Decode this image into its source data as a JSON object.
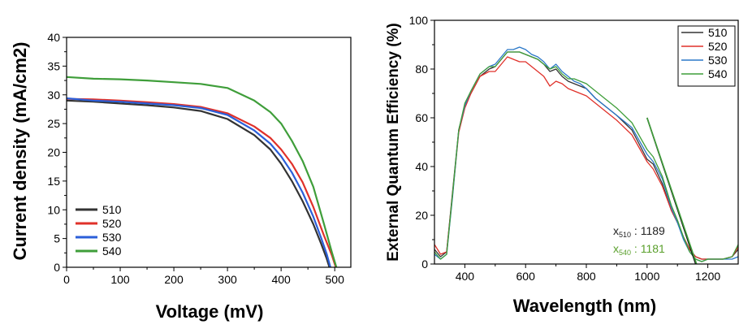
{
  "chart_data": [
    {
      "type": "line",
      "xlabel": "Voltage (mV)",
      "ylabel": "Current density (mA/cm2)",
      "xlim": [
        0,
        530
      ],
      "ylim": [
        0,
        40
      ],
      "xticks": [
        0,
        100,
        200,
        300,
        400,
        500
      ],
      "yticks": [
        0,
        5,
        10,
        15,
        20,
        25,
        30,
        35,
        40
      ],
      "legend_position": "bottom-left",
      "series": [
        {
          "name": "510",
          "color": "#333333",
          "x": [
            0,
            50,
            100,
            150,
            200,
            250,
            300,
            350,
            380,
            400,
            420,
            440,
            460,
            475,
            485,
            490
          ],
          "y": [
            29.0,
            28.8,
            28.5,
            28.2,
            27.8,
            27.2,
            25.8,
            23.0,
            20.5,
            18.0,
            15.0,
            11.5,
            7.5,
            4.0,
            1.5,
            0
          ]
        },
        {
          "name": "520",
          "color": "#e0312a",
          "x": [
            0,
            50,
            100,
            150,
            200,
            250,
            300,
            350,
            380,
            400,
            420,
            440,
            460,
            480,
            495,
            502
          ],
          "y": [
            29.3,
            29.2,
            29.0,
            28.7,
            28.4,
            27.9,
            26.8,
            24.5,
            22.5,
            20.5,
            18.0,
            14.8,
            10.5,
            5.5,
            2.0,
            0
          ]
        },
        {
          "name": "530",
          "color": "#2b5fd9",
          "x": [
            0,
            50,
            100,
            150,
            200,
            250,
            300,
            350,
            380,
            400,
            420,
            440,
            460,
            475,
            485,
            492
          ],
          "y": [
            29.4,
            29.0,
            28.8,
            28.5,
            28.2,
            27.7,
            26.5,
            23.8,
            21.5,
            19.3,
            16.5,
            13.0,
            8.8,
            5.0,
            2.3,
            0
          ]
        },
        {
          "name": "540",
          "color": "#3f9e3a",
          "x": [
            0,
            50,
            100,
            150,
            200,
            250,
            300,
            350,
            380,
            400,
            420,
            440,
            460,
            480,
            495,
            503
          ],
          "y": [
            33.1,
            32.8,
            32.7,
            32.5,
            32.2,
            31.9,
            31.2,
            29.0,
            27.0,
            25.0,
            22.0,
            18.5,
            14.0,
            7.5,
            2.5,
            0
          ]
        }
      ]
    },
    {
      "type": "line",
      "xlabel": "Wavelength (nm)",
      "ylabel": "External Quantum Efficiency (%)",
      "xlim": [
        300,
        1300
      ],
      "ylim": [
        0,
        100
      ],
      "xticks": [
        400,
        600,
        800,
        1000,
        1200
      ],
      "yticks": [
        0,
        20,
        40,
        60,
        80,
        100
      ],
      "legend_position": "top-right",
      "annotations": [
        {
          "label": "x",
          "sub": "510",
          "value": "1189",
          "color": "#222222"
        },
        {
          "label": "x",
          "sub": "540",
          "value": "1181",
          "color": "#5aa02c"
        }
      ],
      "extrapolation_lines": [
        {
          "color": "#111111",
          "x": [
            1000,
            1160
          ],
          "y": [
            60,
            0
          ]
        },
        {
          "color": "#3f9e3a",
          "x": [
            1000,
            1163
          ],
          "y": [
            60,
            0
          ]
        }
      ],
      "series": [
        {
          "name": "510",
          "color": "#333333",
          "x": [
            300,
            320,
            340,
            360,
            380,
            400,
            420,
            450,
            480,
            500,
            520,
            540,
            560,
            580,
            600,
            620,
            640,
            660,
            680,
            700,
            720,
            740,
            760,
            780,
            800,
            830,
            860,
            900,
            950,
            1000,
            1020,
            1050,
            1080,
            1100,
            1120,
            1140,
            1160,
            1180,
            1200,
            1220,
            1250,
            1280,
            1300
          ],
          "y": [
            6,
            3,
            5,
            30,
            55,
            65,
            70,
            77,
            80,
            81,
            84,
            87,
            87,
            87,
            86,
            85,
            84,
            82,
            79,
            80,
            77,
            75,
            74,
            73,
            72,
            68,
            65,
            61,
            55,
            43,
            41,
            33,
            22,
            17,
            11,
            6,
            3,
            2,
            2,
            2,
            2,
            3,
            6
          ]
        },
        {
          "name": "520",
          "color": "#e0312a",
          "x": [
            300,
            320,
            340,
            360,
            380,
            400,
            420,
            450,
            480,
            500,
            520,
            540,
            560,
            580,
            600,
            620,
            640,
            660,
            680,
            700,
            720,
            740,
            760,
            780,
            800,
            830,
            860,
            900,
            950,
            1000,
            1020,
            1050,
            1080,
            1100,
            1120,
            1140,
            1160,
            1180,
            1200,
            1220,
            1250,
            1280,
            1300
          ],
          "y": [
            8,
            4,
            5,
            29,
            54,
            64,
            70,
            77,
            79,
            79,
            82,
            85,
            84,
            83,
            83,
            81,
            79,
            77,
            73,
            75,
            74,
            72,
            71,
            70,
            69,
            66,
            63,
            59,
            53,
            42,
            39,
            32,
            22,
            17,
            11,
            6,
            3,
            2,
            2,
            2,
            2,
            3,
            7
          ]
        },
        {
          "name": "530",
          "color": "#2b78c8",
          "x": [
            300,
            320,
            340,
            360,
            380,
            400,
            420,
            450,
            480,
            500,
            520,
            540,
            560,
            580,
            600,
            620,
            640,
            660,
            680,
            700,
            720,
            740,
            760,
            780,
            800,
            830,
            860,
            900,
            950,
            1000,
            1020,
            1050,
            1080,
            1100,
            1120,
            1140,
            1160,
            1180,
            1200,
            1220,
            1250,
            1280,
            1300
          ],
          "y": [
            4,
            2,
            4,
            28,
            55,
            65,
            71,
            78,
            81,
            82,
            85,
            88,
            88,
            89,
            88,
            86,
            85,
            83,
            80,
            82,
            79,
            77,
            75,
            74,
            72,
            68,
            65,
            61,
            56,
            45,
            42,
            35,
            23,
            17,
            10,
            5,
            2,
            1,
            2,
            2,
            2,
            2,
            3
          ]
        },
        {
          "name": "540",
          "color": "#3f9e3a",
          "x": [
            300,
            320,
            340,
            360,
            380,
            400,
            420,
            450,
            480,
            500,
            520,
            540,
            560,
            580,
            600,
            620,
            640,
            660,
            680,
            700,
            720,
            740,
            760,
            780,
            800,
            830,
            860,
            900,
            950,
            1000,
            1020,
            1050,
            1080,
            1100,
            1120,
            1140,
            1160,
            1180,
            1200,
            1220,
            1250,
            1280,
            1300
          ],
          "y": [
            5,
            2,
            4,
            29,
            55,
            66,
            71,
            78,
            81,
            81,
            84,
            87,
            87,
            87,
            86,
            85,
            84,
            82,
            80,
            81,
            78,
            76,
            76,
            75,
            74,
            71,
            68,
            64,
            58,
            47,
            44,
            36,
            24,
            18,
            11,
            5,
            2,
            1,
            2,
            2,
            2,
            3,
            8
          ]
        }
      ]
    }
  ]
}
